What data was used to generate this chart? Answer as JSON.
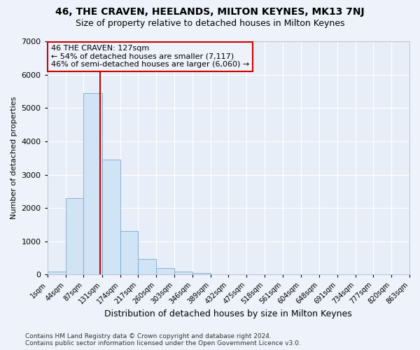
{
  "title": "46, THE CRAVEN, HEELANDS, MILTON KEYNES, MK13 7NJ",
  "subtitle": "Size of property relative to detached houses in Milton Keynes",
  "xlabel": "Distribution of detached houses by size in Milton Keynes",
  "ylabel": "Number of detached properties",
  "bin_edges": [
    1,
    44,
    87,
    131,
    174,
    217,
    260,
    303,
    346,
    389,
    432,
    475,
    518,
    561,
    604,
    648,
    691,
    734,
    777,
    820,
    863
  ],
  "bar_heights": [
    100,
    2300,
    5450,
    3450,
    1300,
    480,
    200,
    100,
    60,
    10,
    5,
    5,
    3,
    2,
    1,
    1,
    0,
    0,
    0,
    0
  ],
  "bar_color": "#d0e4f5",
  "bar_edge_color": "#7ba8cc",
  "property_size": 127,
  "vline_color": "#cc0000",
  "annotation_line1": "46 THE CRAVEN: 127sqm",
  "annotation_line2": "← 54% of detached houses are smaller (7,117)",
  "annotation_line3": "46% of semi-detached houses are larger (6,060) →",
  "annotation_box_color": "#cc0000",
  "ylim": [
    0,
    7000
  ],
  "yticks": [
    0,
    1000,
    2000,
    3000,
    4000,
    5000,
    6000,
    7000
  ],
  "tick_labels": [
    "1sqm",
    "44sqm",
    "87sqm",
    "131sqm",
    "174sqm",
    "217sqm",
    "260sqm",
    "303sqm",
    "346sqm",
    "389sqm",
    "432sqm",
    "475sqm",
    "518sqm",
    "561sqm",
    "604sqm",
    "648sqm",
    "691sqm",
    "734sqm",
    "777sqm",
    "820sqm",
    "863sqm"
  ],
  "footer": "Contains HM Land Registry data © Crown copyright and database right 2024.\nContains public sector information licensed under the Open Government Licence v3.0.",
  "background_color": "#eef2fb",
  "plot_bg_color": "#e8eef8",
  "grid_color": "#ffffff",
  "title_fontsize": 10,
  "subtitle_fontsize": 9,
  "axis_label_fontsize": 8,
  "ylabel_fontsize": 8,
  "tick_fontsize": 7,
  "annotation_fontsize": 8,
  "footer_fontsize": 6.5
}
